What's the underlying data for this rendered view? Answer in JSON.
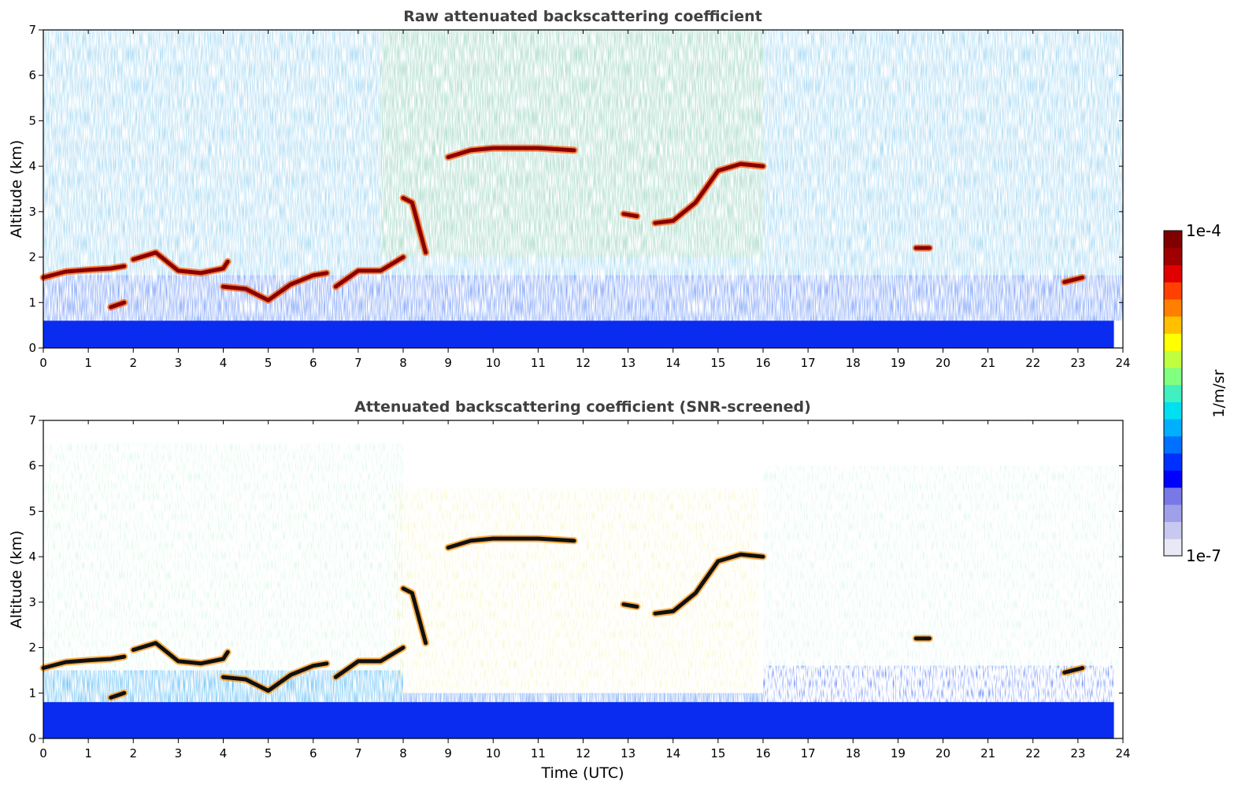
{
  "colorbar": {
    "max_label": "1e-4",
    "min_label": "1e-7",
    "unit_label": "1/m/sr",
    "colormap": [
      "#e8e8f6",
      "#c8c8f0",
      "#a0a0ea",
      "#7878e6",
      "#0000ff",
      "#0030ff",
      "#0070ff",
      "#00b0ff",
      "#00e0f0",
      "#40f0c0",
      "#80ff80",
      "#c0ff40",
      "#ffff00",
      "#ffc000",
      "#ff8000",
      "#ff4000",
      "#e00000",
      "#a00000",
      "#800000"
    ]
  },
  "x_axis": {
    "label": "Time (UTC)"
  },
  "chart_data": [
    {
      "type": "heatmap",
      "title": "Raw attenuated backscattering coefficient",
      "xlabel": "",
      "ylabel": "Altitude (km)",
      "xlim": [
        0,
        24
      ],
      "ylim": [
        0,
        7
      ],
      "xticks": [
        0,
        1,
        2,
        3,
        4,
        5,
        6,
        7,
        8,
        9,
        10,
        11,
        12,
        13,
        14,
        15,
        16,
        17,
        18,
        19,
        20,
        21,
        22,
        23,
        24
      ],
      "yticks": [
        0,
        1,
        2,
        3,
        4,
        5,
        6,
        7
      ],
      "color_scale": "log",
      "clim": [
        1e-07,
        0.0001
      ],
      "cloud_layers": [
        {
          "t": [
            0,
            0.5,
            1,
            1.5,
            1.8
          ],
          "alt": [
            1.55,
            1.68,
            1.72,
            1.75,
            1.8
          ]
        },
        {
          "t": [
            1.5,
            1.8
          ],
          "alt": [
            0.9,
            1.0
          ]
        },
        {
          "t": [
            2.0,
            2.5,
            3.0,
            3.5,
            4.0,
            4.1
          ],
          "alt": [
            1.95,
            2.1,
            1.7,
            1.65,
            1.75,
            1.9
          ]
        },
        {
          "t": [
            4.0,
            4.5,
            5.0,
            5.5,
            6.0,
            6.3
          ],
          "alt": [
            1.35,
            1.3,
            1.05,
            1.4,
            1.6,
            1.65
          ]
        },
        {
          "t": [
            6.5,
            7.0,
            7.5,
            8.0
          ],
          "alt": [
            1.35,
            1.7,
            1.7,
            2.0
          ]
        },
        {
          "t": [
            8.0,
            8.2,
            8.5
          ],
          "alt": [
            3.3,
            3.2,
            2.1
          ]
        },
        {
          "t": [
            9.0,
            9.5,
            10.0,
            10.5,
            11.0,
            11.8
          ],
          "alt": [
            4.2,
            4.35,
            4.4,
            4.4,
            4.4,
            4.35
          ]
        },
        {
          "t": [
            13.6,
            14.0,
            14.5,
            15.0,
            15.5,
            16.0
          ],
          "alt": [
            2.75,
            2.8,
            3.2,
            3.9,
            4.05,
            4.0
          ]
        },
        {
          "t": [
            12.9,
            13.2
          ],
          "alt": [
            2.95,
            2.9
          ]
        },
        {
          "t": [
            19.4,
            19.7
          ],
          "alt": [
            2.2,
            2.2
          ]
        },
        {
          "t": [
            22.7,
            23.1
          ],
          "alt": [
            1.45,
            1.55
          ]
        }
      ]
    },
    {
      "type": "heatmap",
      "title": "Attenuated backscattering coefficient (SNR-screened)",
      "xlabel": "Time (UTC)",
      "ylabel": "Altitude (km)",
      "xlim": [
        0,
        24
      ],
      "ylim": [
        0,
        7
      ],
      "xticks": [
        0,
        1,
        2,
        3,
        4,
        5,
        6,
        7,
        8,
        9,
        10,
        11,
        12,
        13,
        14,
        15,
        16,
        17,
        18,
        19,
        20,
        21,
        22,
        23,
        24
      ],
      "yticks": [
        0,
        1,
        2,
        3,
        4,
        5,
        6,
        7
      ],
      "color_scale": "log",
      "clim": [
        1e-07,
        0.0001
      ]
    }
  ]
}
